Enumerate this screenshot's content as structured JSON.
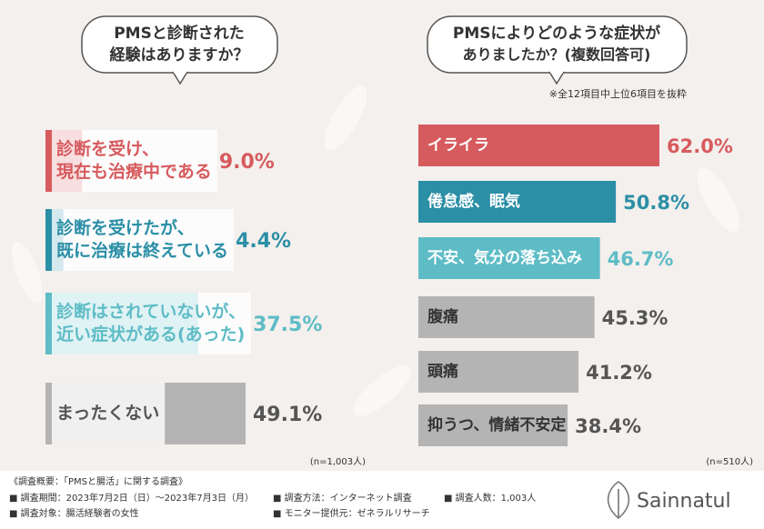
{
  "chart_data": [
    {
      "type": "hbar",
      "title": [
        "PMSと診断された",
        "経験はありますか？"
      ],
      "categories": [
        [
          "診断を受け、",
          "現在も治療中である"
        ],
        [
          "診断を受けたが、",
          "既に治療は終えている"
        ],
        [
          "診断はされていないが、",
          "近い症状がある(あった)"
        ],
        [
          "まったくない"
        ]
      ],
      "values": [
        9.0,
        4.4,
        37.5,
        49.1
      ],
      "value_labels": [
        "9.0%",
        "4.4%",
        "37.5%",
        "49.1%"
      ],
      "colors": [
        "#d65b5e",
        "#2b8fa6",
        "#5ebcc6",
        "#b5b4b4"
      ],
      "text_colors": [
        "#d65b5e",
        "#2b8fa6",
        "#5ebcc6",
        "#555555"
      ],
      "note": "(n=1,003人)"
    },
    {
      "type": "hbar",
      "title": [
        "PMSによりどのような症状が",
        "ありましたか？(複数回答可)"
      ],
      "subtitle": "※全12項目中上位6項目を抜粋",
      "categories": [
        [
          "イライラ"
        ],
        [
          "倦怠感、眠気"
        ],
        [
          "不安、気分の落ち込み"
        ],
        [
          "腹痛"
        ],
        [
          "頭痛"
        ],
        [
          "抑うつ、情緒不安定"
        ]
      ],
      "values": [
        62.0,
        50.8,
        46.7,
        45.3,
        41.2,
        38.4
      ],
      "value_labels": [
        "62.0%",
        "50.8%",
        "46.7%",
        "45.3%",
        "41.2%",
        "38.4%"
      ],
      "colors": [
        "#d65b5e",
        "#2b8fa6",
        "#5ebcc6",
        "#b5b4b4",
        "#b5b4b4",
        "#b5b4b4"
      ],
      "text_colors": [
        "#d65b5e",
        "#2b8fa6",
        "#5ebcc6",
        "#555555",
        "#555555",
        "#555555"
      ],
      "note": "(n=510人)"
    }
  ],
  "survey": {
    "heading": "《調査概要：「PMSと腸活」に関する調査》",
    "items": [
      "■ 調査期間：2023年7月2日（日）～2023年7月3日（月）",
      "■ 調査方法：インターネット調査",
      "■ 調査人数：1,003人",
      "■ 調査対象：腸活経験者の女性",
      "■ モニター提供元：ゼネラルリサーチ"
    ]
  },
  "brand": "Sainnatul"
}
